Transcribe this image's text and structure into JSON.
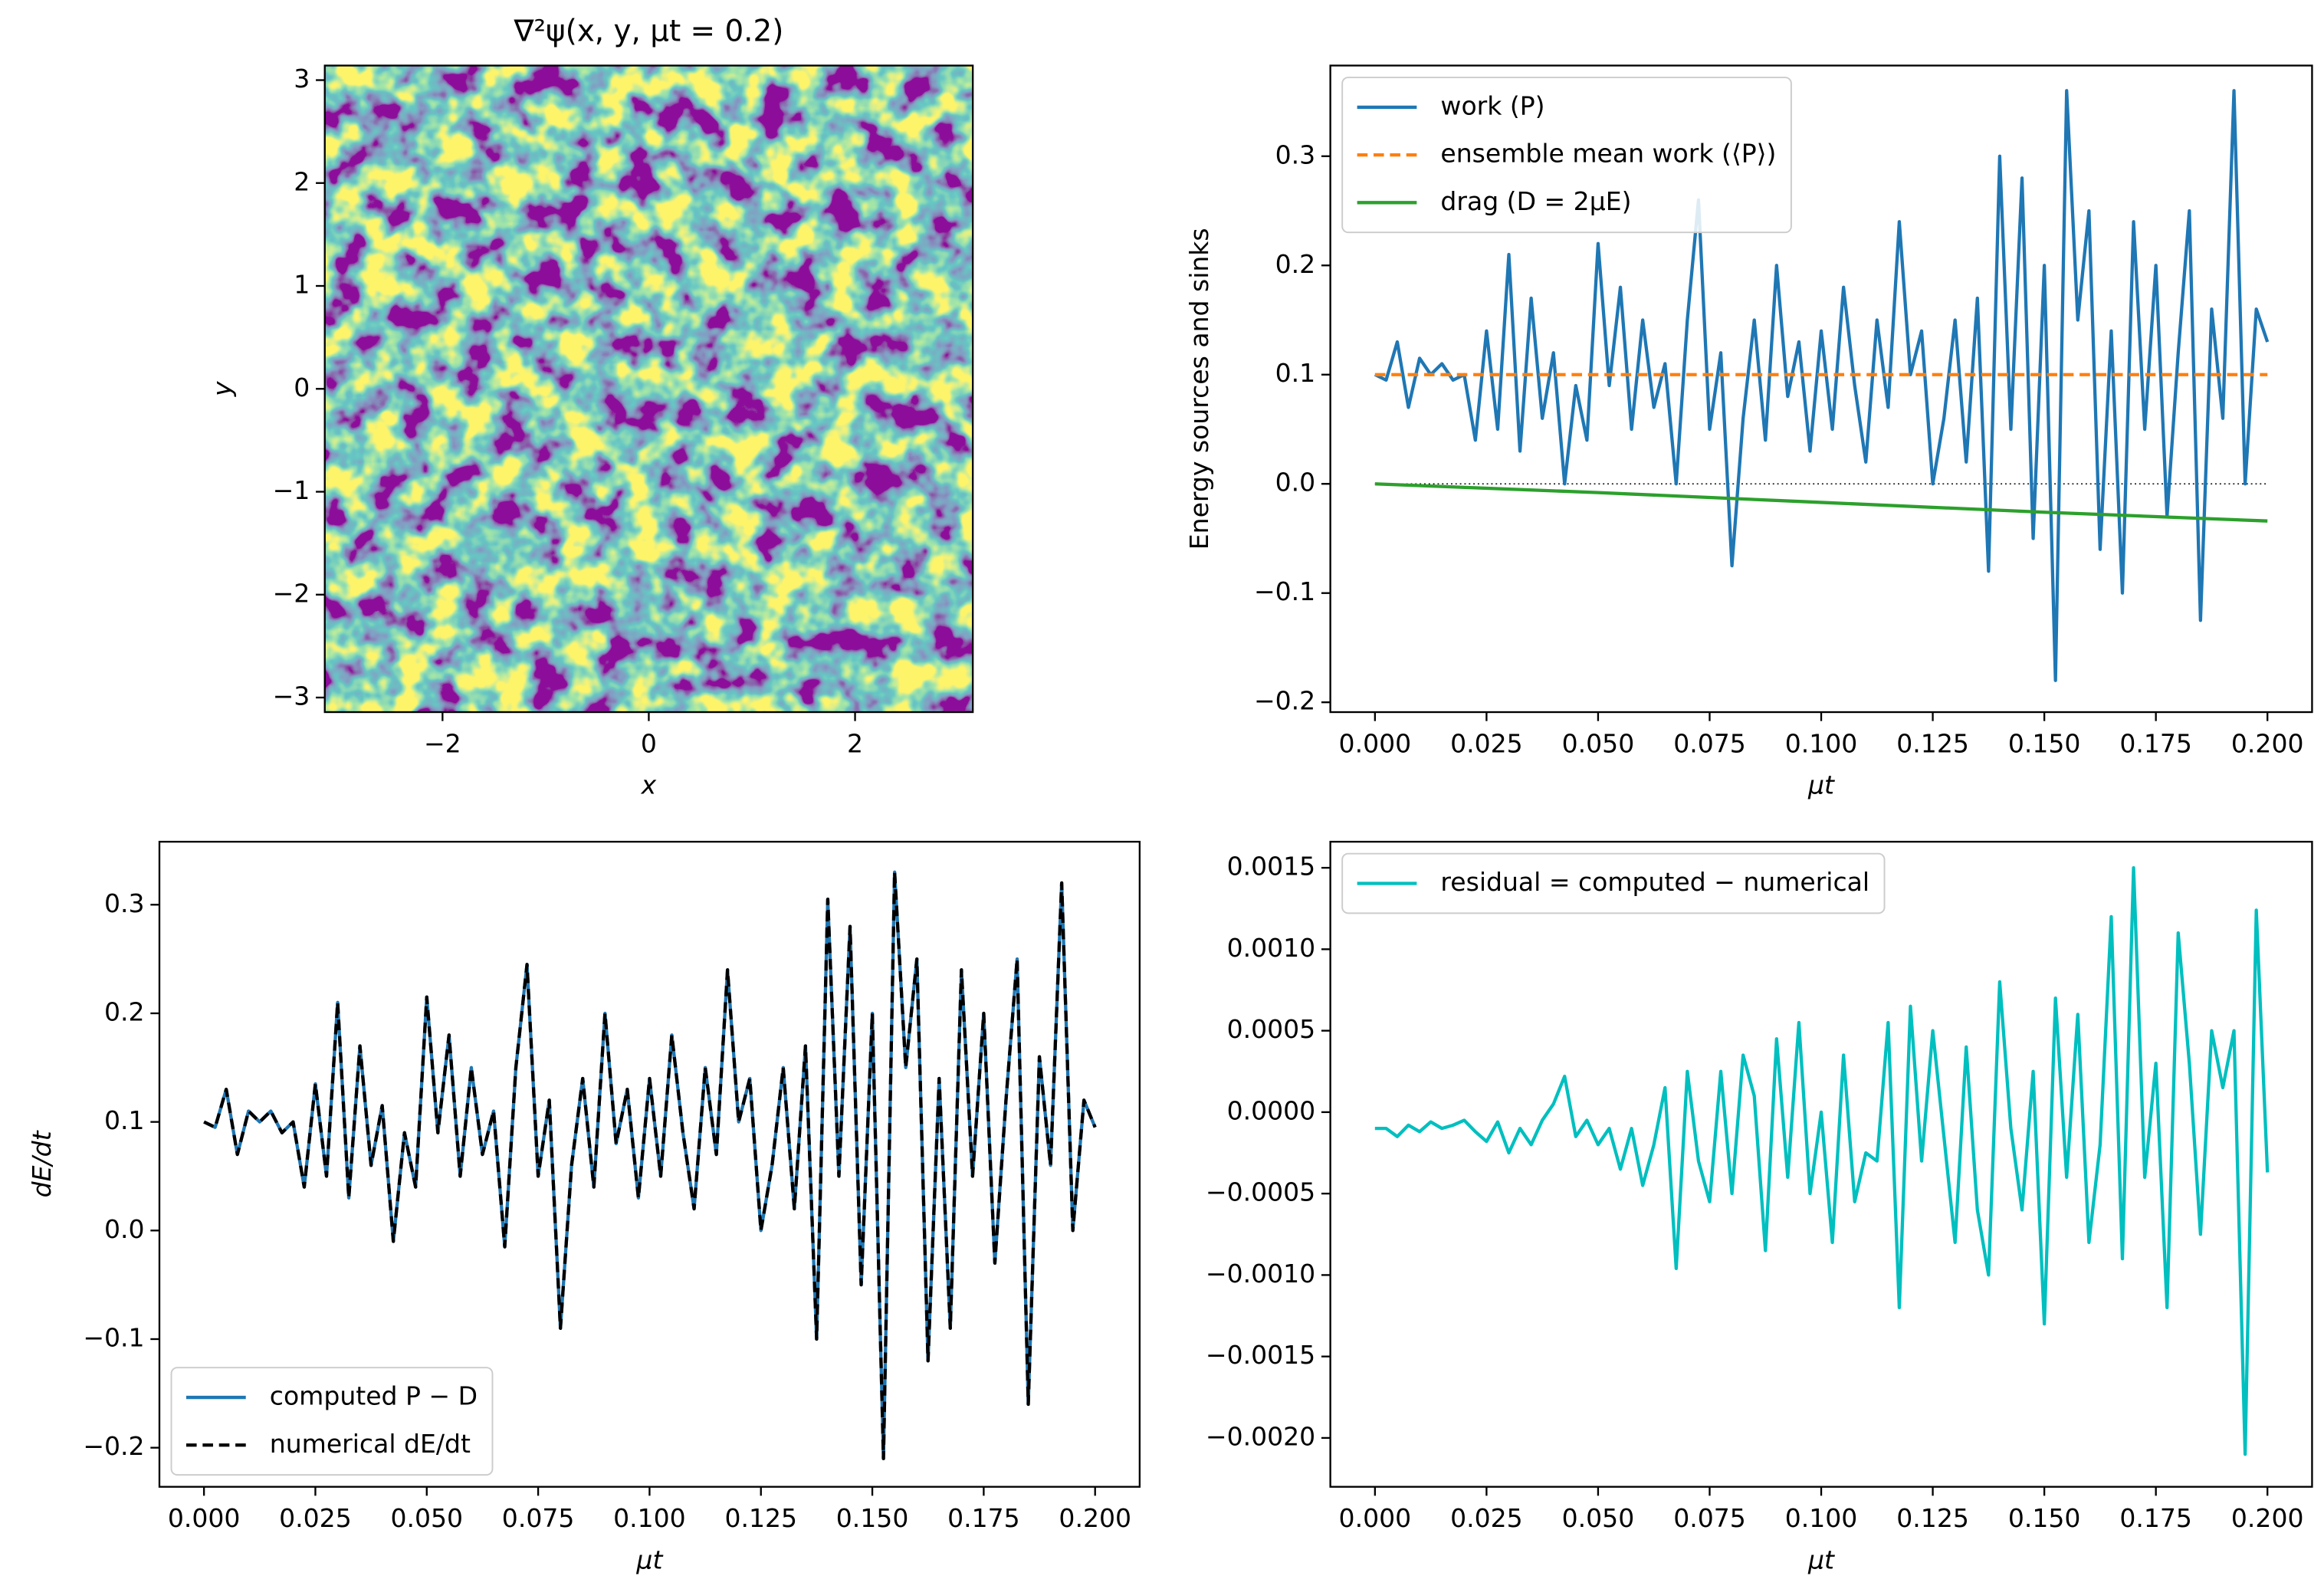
{
  "chart_data": [
    {
      "type": "heatmap",
      "title": "∇²ψ(x, y, μt = 0.2)",
      "xlabel": "x",
      "ylabel": "y",
      "colormap": "viridis",
      "xlim": [
        -3.1416,
        3.1416
      ],
      "ylim": [
        -3.1416,
        3.1416
      ],
      "xticks": [
        {
          "value": -2,
          "label": "−2"
        },
        0,
        2
      ],
      "yticks": [
        {
          "value": -3,
          "label": "−3"
        },
        {
          "value": -2,
          "label": "−2"
        },
        {
          "value": -1,
          "label": "−1"
        },
        0,
        1,
        2,
        3
      ]
    },
    {
      "type": "line",
      "xlabel": "μt",
      "ylabel": "Energy sources and sinks",
      "legend": "upper left",
      "reference_line": 0,
      "xlim": [
        -0.01,
        0.21
      ],
      "ylim": [
        -0.209,
        0.383
      ],
      "xticks": [
        {
          "value": 0,
          "label": "0.000"
        },
        0.025,
        {
          "value": 0.05,
          "label": "0.050"
        },
        0.075,
        {
          "value": 0.1,
          "label": "0.100"
        },
        0.125,
        {
          "value": 0.15,
          "label": "0.150"
        },
        0.175,
        {
          "value": 0.2,
          "label": "0.200"
        }
      ],
      "yticks": [
        {
          "value": -0.2,
          "label": "−0.2"
        },
        {
          "value": -0.1,
          "label": "−0.1"
        },
        {
          "value": 0,
          "label": "0.0"
        },
        0.1,
        0.2,
        0.3
      ],
      "x": [
        0,
        0.0025,
        0.005,
        0.0075,
        0.01,
        0.0125,
        0.015,
        0.0175,
        0.02,
        0.0225,
        0.025,
        0.0275,
        0.03,
        0.0325,
        0.035,
        0.0375,
        0.04,
        0.0425,
        0.045,
        0.0475,
        0.05,
        0.0525,
        0.055,
        0.0575,
        0.06,
        0.0625,
        0.065,
        0.0675,
        0.07,
        0.0725,
        0.075,
        0.0775,
        0.08,
        0.0825,
        0.085,
        0.0875,
        0.09,
        0.0925,
        0.095,
        0.0975,
        0.1,
        0.1025,
        0.105,
        0.1075,
        0.11,
        0.1125,
        0.115,
        0.1175,
        0.12,
        0.1225,
        0.125,
        0.1275,
        0.13,
        0.1325,
        0.135,
        0.1375,
        0.14,
        0.1425,
        0.145,
        0.1475,
        0.15,
        0.1525,
        0.155,
        0.1575,
        0.16,
        0.1625,
        0.165,
        0.1675,
        0.17,
        0.1725,
        0.175,
        0.1775,
        0.18,
        0.1825,
        0.185,
        0.1875,
        0.19,
        0.1925,
        0.195,
        0.1975,
        0.2
      ],
      "series": [
        {
          "name": "work (P)",
          "color": "#1f77b4",
          "linestyle": "solid",
          "values": [
            0.1,
            0.095,
            0.13,
            0.07,
            0.115,
            0.1,
            0.11,
            0.095,
            0.1,
            0.04,
            0.14,
            0.05,
            0.21,
            0.03,
            0.17,
            0.06,
            0.12,
            0.0,
            0.09,
            0.04,
            0.22,
            0.09,
            0.18,
            0.05,
            0.15,
            0.07,
            0.11,
            0.0,
            0.15,
            0.26,
            0.05,
            0.12,
            -0.075,
            0.06,
            0.15,
            0.04,
            0.2,
            0.08,
            0.13,
            0.03,
            0.14,
            0.05,
            0.18,
            0.09,
            0.02,
            0.15,
            0.07,
            0.24,
            0.1,
            0.14,
            0.0,
            0.06,
            0.15,
            0.02,
            0.17,
            -0.08,
            0.3,
            0.05,
            0.28,
            -0.05,
            0.2,
            -0.18,
            0.36,
            0.15,
            0.25,
            -0.06,
            0.14,
            -0.1,
            0.24,
            0.05,
            0.2,
            -0.03,
            0.12,
            0.25,
            -0.125,
            0.16,
            0.06,
            0.36,
            0.0,
            0.16,
            0.13
          ]
        },
        {
          "name": "ensemble mean  work (⟨P⟩)",
          "color": "#ff7f0e",
          "linestyle": "dashed",
          "x": [
            0,
            0.2
          ],
          "values": [
            0.1,
            0.1
          ]
        },
        {
          "name": "drag (D = 2μE)",
          "color": "#2ca02c",
          "linestyle": "solid",
          "x": [
            0,
            0.05,
            0.1,
            0.15,
            0.2
          ],
          "values": [
            0,
            -0.008,
            -0.017,
            -0.026,
            -0.034
          ]
        }
      ]
    },
    {
      "type": "line",
      "xlabel": "μt",
      "ylabel": "dE/dt",
      "legend": "lower left",
      "xlim": [
        -0.01,
        0.21
      ],
      "ylim": [
        -0.236,
        0.358
      ],
      "xticks": [
        {
          "value": 0,
          "label": "0.000"
        },
        0.025,
        {
          "value": 0.05,
          "label": "0.050"
        },
        0.075,
        {
          "value": 0.1,
          "label": "0.100"
        },
        0.125,
        {
          "value": 0.15,
          "label": "0.150"
        },
        0.175,
        {
          "value": 0.2,
          "label": "0.200"
        }
      ],
      "yticks": [
        {
          "value": -0.2,
          "label": "−0.2"
        },
        {
          "value": -0.1,
          "label": "−0.1"
        },
        {
          "value": 0,
          "label": "0.0"
        },
        0.1,
        0.2,
        0.3
      ],
      "x": [
        0,
        0.0025,
        0.005,
        0.0075,
        0.01,
        0.0125,
        0.015,
        0.0175,
        0.02,
        0.0225,
        0.025,
        0.0275,
        0.03,
        0.0325,
        0.035,
        0.0375,
        0.04,
        0.0425,
        0.045,
        0.0475,
        0.05,
        0.0525,
        0.055,
        0.0575,
        0.06,
        0.0625,
        0.065,
        0.0675,
        0.07,
        0.0725,
        0.075,
        0.0775,
        0.08,
        0.0825,
        0.085,
        0.0875,
        0.09,
        0.0925,
        0.095,
        0.0975,
        0.1,
        0.1025,
        0.105,
        0.1075,
        0.11,
        0.1125,
        0.115,
        0.1175,
        0.12,
        0.1225,
        0.125,
        0.1275,
        0.13,
        0.1325,
        0.135,
        0.1375,
        0.14,
        0.1425,
        0.145,
        0.1475,
        0.15,
        0.1525,
        0.155,
        0.1575,
        0.16,
        0.1625,
        0.165,
        0.1675,
        0.17,
        0.1725,
        0.175,
        0.1775,
        0.18,
        0.1825,
        0.185,
        0.1875,
        0.19,
        0.1925,
        0.195,
        0.1975,
        0.2
      ],
      "series": [
        {
          "name": "computed P − D",
          "color": "#1f77b4",
          "linestyle": "solid",
          "values": [
            0.1,
            0.095,
            0.13,
            0.07,
            0.11,
            0.1,
            0.11,
            0.09,
            0.1,
            0.04,
            0.135,
            0.05,
            0.21,
            0.03,
            0.17,
            0.06,
            0.115,
            -0.01,
            0.09,
            0.04,
            0.215,
            0.09,
            0.18,
            0.05,
            0.15,
            0.07,
            0.11,
            -0.015,
            0.15,
            0.245,
            0.05,
            0.12,
            -0.09,
            0.06,
            0.14,
            0.04,
            0.2,
            0.08,
            0.13,
            0.03,
            0.14,
            0.05,
            0.18,
            0.09,
            0.02,
            0.15,
            0.07,
            0.24,
            0.1,
            0.14,
            0.0,
            0.06,
            0.15,
            0.02,
            0.17,
            -0.1,
            0.305,
            0.05,
            0.28,
            -0.05,
            0.2,
            -0.21,
            0.33,
            0.15,
            0.25,
            -0.12,
            0.14,
            -0.09,
            0.24,
            0.05,
            0.2,
            -0.03,
            0.12,
            0.25,
            -0.16,
            0.16,
            0.06,
            0.32,
            0.0,
            0.12,
            0.095
          ]
        },
        {
          "name": "numerical dE/dt",
          "color": "#000000",
          "linestyle": "dashed",
          "values": [
            0.1,
            0.095,
            0.13,
            0.07,
            0.11,
            0.1,
            0.11,
            0.09,
            0.1,
            0.04,
            0.135,
            0.05,
            0.21,
            0.03,
            0.17,
            0.06,
            0.115,
            -0.01,
            0.09,
            0.04,
            0.215,
            0.09,
            0.18,
            0.05,
            0.15,
            0.07,
            0.11,
            -0.015,
            0.15,
            0.245,
            0.05,
            0.12,
            -0.09,
            0.06,
            0.14,
            0.04,
            0.2,
            0.08,
            0.13,
            0.03,
            0.14,
            0.05,
            0.18,
            0.09,
            0.02,
            0.15,
            0.07,
            0.24,
            0.1,
            0.14,
            0.0,
            0.06,
            0.15,
            0.02,
            0.17,
            -0.1,
            0.305,
            0.05,
            0.28,
            -0.05,
            0.2,
            -0.21,
            0.33,
            0.15,
            0.25,
            -0.12,
            0.14,
            -0.09,
            0.24,
            0.05,
            0.2,
            -0.03,
            0.12,
            0.25,
            -0.16,
            0.16,
            0.06,
            0.32,
            0.0,
            0.12,
            0.095
          ]
        }
      ]
    },
    {
      "type": "line",
      "xlabel": "μt",
      "legend": "upper left",
      "xlim": [
        -0.01,
        0.21
      ],
      "ylim": [
        -0.0023,
        0.00166
      ],
      "xticks": [
        {
          "value": 0,
          "label": "0.000"
        },
        0.025,
        {
          "value": 0.05,
          "label": "0.050"
        },
        0.075,
        {
          "value": 0.1,
          "label": "0.100"
        },
        0.125,
        {
          "value": 0.15,
          "label": "0.150"
        },
        0.175,
        {
          "value": 0.2,
          "label": "0.200"
        }
      ],
      "yticks": [
        {
          "value": -0.002,
          "label": "−0.0020"
        },
        {
          "value": -0.0015,
          "label": "−0.0015"
        },
        {
          "value": -0.001,
          "label": "−0.0010"
        },
        {
          "value": -0.0005,
          "label": "−0.0005"
        },
        {
          "value": 0,
          "label": "0.0000"
        },
        {
          "value": 0.0005,
          "label": "0.0005"
        },
        {
          "value": 0.001,
          "label": "0.0010"
        },
        {
          "value": 0.0015,
          "label": "0.0015"
        }
      ],
      "x": [
        0,
        0.0025,
        0.005,
        0.0075,
        0.01,
        0.0125,
        0.015,
        0.0175,
        0.02,
        0.0225,
        0.025,
        0.0275,
        0.03,
        0.0325,
        0.035,
        0.0375,
        0.04,
        0.0425,
        0.045,
        0.0475,
        0.05,
        0.0525,
        0.055,
        0.0575,
        0.06,
        0.0625,
        0.065,
        0.0675,
        0.07,
        0.0725,
        0.075,
        0.0775,
        0.08,
        0.0825,
        0.085,
        0.0875,
        0.09,
        0.0925,
        0.095,
        0.0975,
        0.1,
        0.1025,
        0.105,
        0.1075,
        0.11,
        0.1125,
        0.115,
        0.1175,
        0.12,
        0.1225,
        0.125,
        0.1275,
        0.13,
        0.1325,
        0.135,
        0.1375,
        0.14,
        0.1425,
        0.145,
        0.1475,
        0.15,
        0.1525,
        0.155,
        0.1575,
        0.16,
        0.1625,
        0.165,
        0.1675,
        0.17,
        0.1725,
        0.175,
        0.1775,
        0.18,
        0.1825,
        0.185,
        0.1875,
        0.19,
        0.1925,
        0.195,
        0.1975,
        0.2
      ],
      "series": [
        {
          "name": "residual = computed − numerical",
          "color": "#00bfbf",
          "linestyle": "solid",
          "values": [
            -0.0001,
            -0.0001,
            -0.00015,
            -8e-05,
            -0.00012,
            -6e-05,
            -0.0001,
            -8e-05,
            -5e-05,
            -0.00012,
            -0.00018,
            -6e-05,
            -0.00025,
            -0.0001,
            -0.0002,
            -5e-05,
            5e-05,
            0.00022,
            -0.00015,
            -5e-05,
            -0.0002,
            -0.0001,
            -0.00035,
            -0.0001,
            -0.00045,
            -0.0002,
            0.00015,
            -0.00096,
            0.00025,
            -0.0003,
            -0.00055,
            0.00025,
            -0.0005,
            0.00035,
            0.0001,
            -0.00085,
            0.00045,
            -0.0004,
            0.00055,
            -0.0005,
            0.0,
            -0.0008,
            0.00035,
            -0.00055,
            -0.00025,
            -0.0003,
            0.00055,
            -0.0012,
            0.00065,
            -0.0003,
            0.0005,
            -0.00015,
            -0.0008,
            0.0004,
            -0.0006,
            -0.001,
            0.0008,
            -0.0001,
            -0.0006,
            0.00025,
            -0.0013,
            0.0007,
            -0.0004,
            0.0006,
            -0.0008,
            -0.0002,
            0.0012,
            -0.0009,
            0.0015,
            -0.0004,
            0.0003,
            -0.0012,
            0.0011,
            0.0003,
            -0.00075,
            0.0005,
            0.00015,
            0.0005,
            -0.0021,
            0.00124,
            -0.00037
          ]
        }
      ]
    }
  ]
}
